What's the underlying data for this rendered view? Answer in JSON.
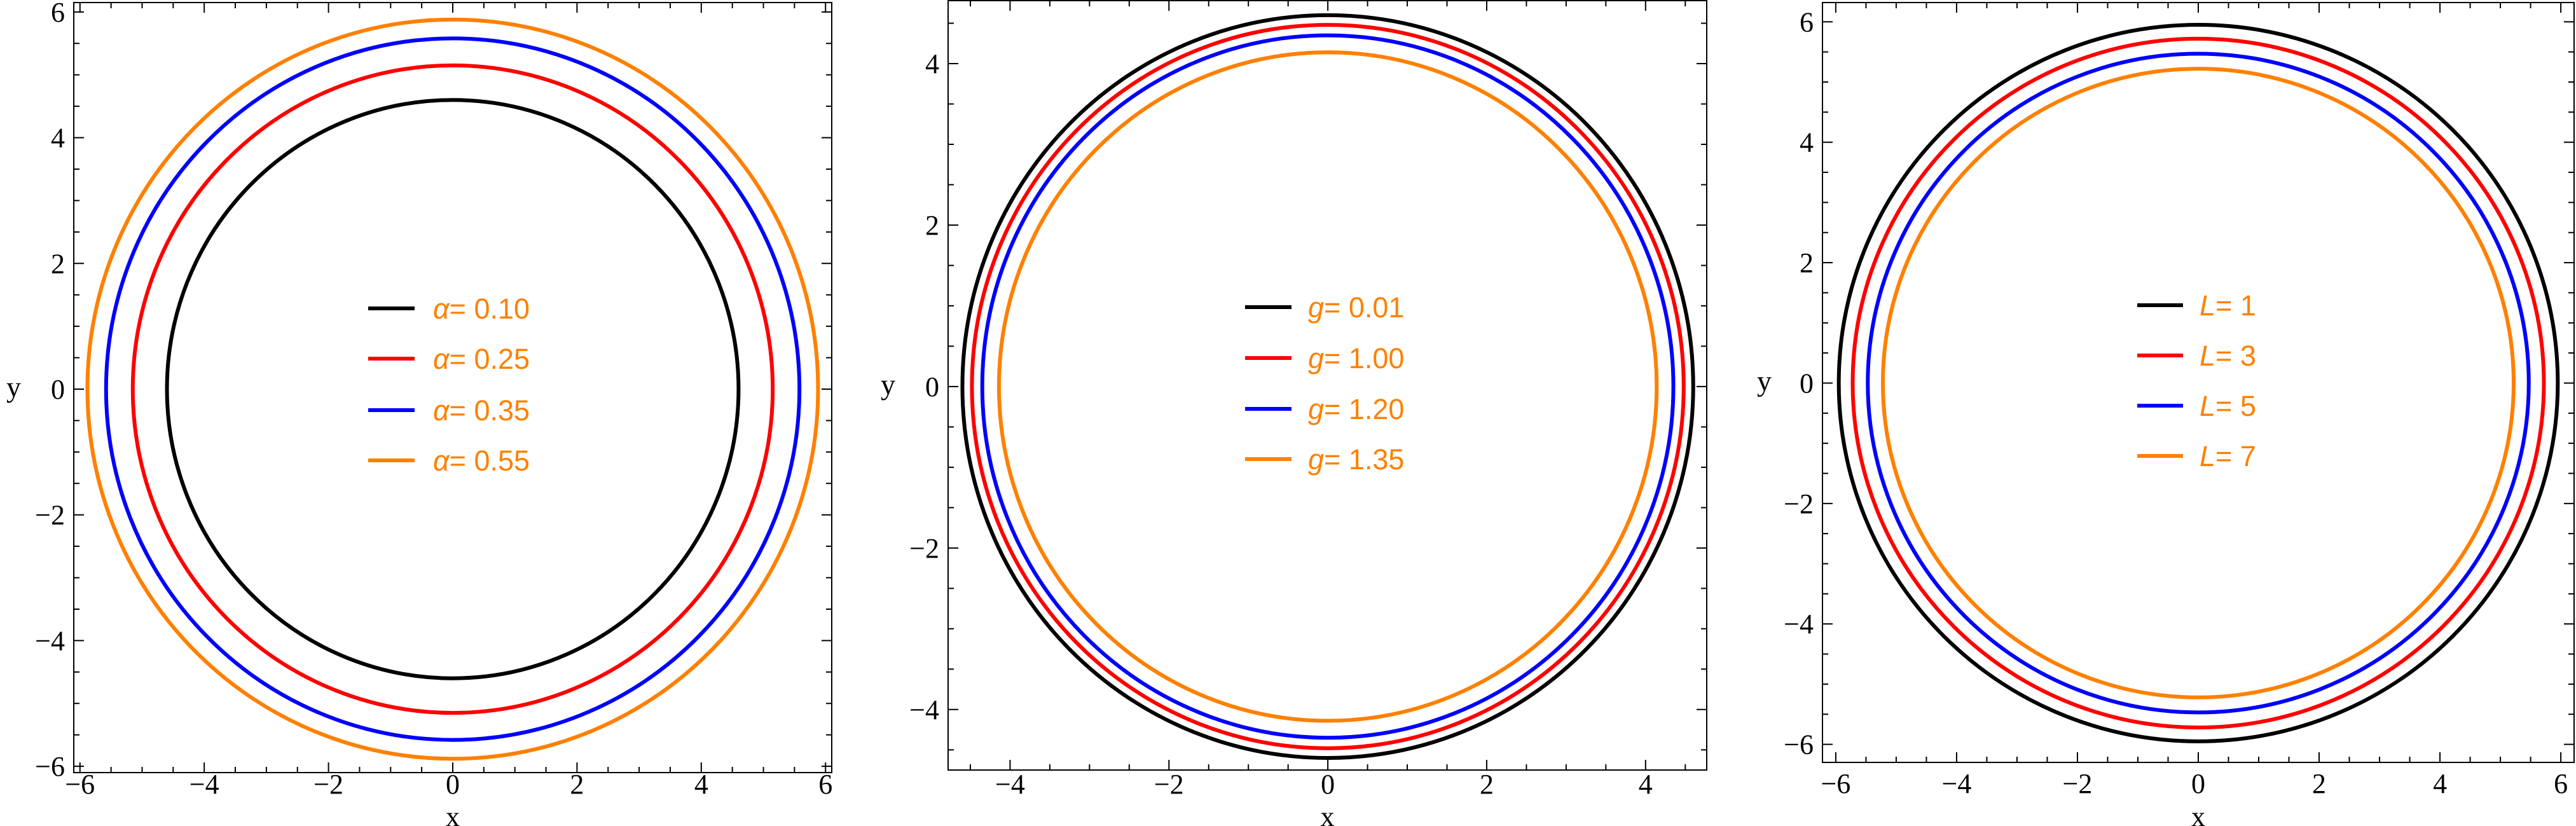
{
  "chart_data": [
    {
      "type": "line",
      "xlabel": "x",
      "ylabel": "y",
      "xlim": [
        -6.1,
        6.1
      ],
      "ylim": [
        -6.1,
        6.15
      ],
      "xticks": [
        -6,
        -4,
        -2,
        0,
        2,
        4,
        6
      ],
      "yticks": [
        -6,
        -4,
        -2,
        0,
        2,
        4,
        6
      ],
      "grid": false,
      "legend_position": "center",
      "series": [
        {
          "name": "α= 0.10",
          "radius": 4.6,
          "color": "#000000"
        },
        {
          "name": "α= 0.25",
          "radius": 5.15,
          "color": "#ff0000"
        },
        {
          "name": "α= 0.35",
          "radius": 5.58,
          "color": "#0000ff"
        },
        {
          "name": "α= 0.55",
          "radius": 5.88,
          "color": "#ff8000"
        }
      ]
    },
    {
      "type": "line",
      "xlabel": "x",
      "ylabel": "y",
      "xlim": [
        -4.78,
        4.77
      ],
      "ylim": [
        -4.75,
        4.78
      ],
      "xticks": [
        -4,
        -2,
        0,
        2,
        4
      ],
      "yticks": [
        -4,
        -2,
        0,
        2,
        4
      ],
      "grid": false,
      "legend_position": "center",
      "series": [
        {
          "name": "g= 0.01",
          "radius": 4.6,
          "color": "#000000"
        },
        {
          "name": "g= 1.00",
          "radius": 4.48,
          "color": "#ff0000"
        },
        {
          "name": "g= 1.20",
          "radius": 4.35,
          "color": "#0000ff"
        },
        {
          "name": "g= 1.35",
          "radius": 4.14,
          "color": "#ff8000"
        }
      ]
    },
    {
      "type": "line",
      "xlabel": "x",
      "ylabel": "y",
      "xlim": [
        -6.22,
        6.22
      ],
      "ylim": [
        -6.3,
        6.32
      ],
      "xticks": [
        -6,
        -4,
        -2,
        0,
        2,
        4,
        6
      ],
      "yticks": [
        -6,
        -4,
        -2,
        0,
        2,
        4,
        6
      ],
      "grid": false,
      "legend_position": "center",
      "series": [
        {
          "name": "L= 1",
          "radius": 5.95,
          "color": "#000000"
        },
        {
          "name": "L= 3",
          "radius": 5.72,
          "color": "#ff0000"
        },
        {
          "name": "L= 5",
          "radius": 5.47,
          "color": "#0000ff"
        },
        {
          "name": "L= 7",
          "radius": 5.22,
          "color": "#ff8000"
        }
      ]
    }
  ],
  "legend_text_color": "#ff8000"
}
